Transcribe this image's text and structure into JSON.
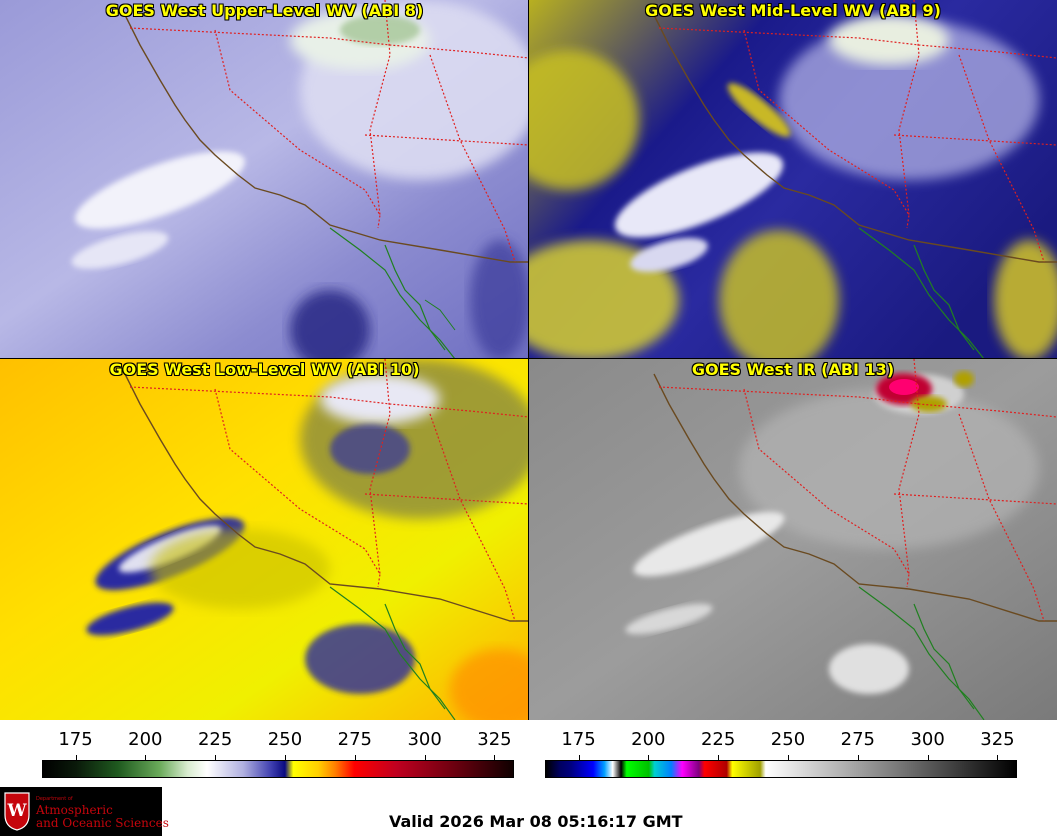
{
  "panels": [
    {
      "title": "GOES West Upper-Level WV (ABI 8)",
      "scheme": "upper"
    },
    {
      "title": "GOES West Mid-Level WV (ABI 9)",
      "scheme": "mid"
    },
    {
      "title": "GOES West Low-Level WV (ABI 10)",
      "scheme": "low"
    },
    {
      "title": "GOES West IR (ABI 13)",
      "scheme": "ir"
    }
  ],
  "colorbars": {
    "ticks": [
      "175",
      "200",
      "225",
      "250",
      "275",
      "300",
      "325"
    ],
    "tick_values": [
      175,
      200,
      225,
      250,
      275,
      300,
      325
    ],
    "range": [
      163,
      332
    ],
    "wv_stops": [
      [
        163,
        "#000000"
      ],
      [
        175,
        "#0a1a0a"
      ],
      [
        190,
        "#1f5a1f"
      ],
      [
        205,
        "#6aaa5a"
      ],
      [
        215,
        "#d8ecd0"
      ],
      [
        222,
        "#ffffff"
      ],
      [
        235,
        "#b0b0e0"
      ],
      [
        245,
        "#4040b0"
      ],
      [
        250,
        "#0a0a80"
      ],
      [
        253,
        "#ffff00"
      ],
      [
        262,
        "#ffd000"
      ],
      [
        268,
        "#ff8000"
      ],
      [
        275,
        "#ff0000"
      ],
      [
        290,
        "#c00020"
      ],
      [
        310,
        "#700010"
      ],
      [
        332,
        "#100000"
      ]
    ],
    "ir_stops": [
      [
        163,
        "#000000"
      ],
      [
        168,
        "#000060"
      ],
      [
        172,
        "#000080"
      ],
      [
        180,
        "#0000ff"
      ],
      [
        184,
        "#00a0ff"
      ],
      [
        187,
        "#ffffff"
      ],
      [
        190,
        "#000000"
      ],
      [
        192,
        "#00ff00"
      ],
      [
        200,
        "#00c000"
      ],
      [
        202,
        "#00d0d0"
      ],
      [
        208,
        "#0080ff"
      ],
      [
        212,
        "#ff00ff"
      ],
      [
        218,
        "#800080"
      ],
      [
        220,
        "#ff0000"
      ],
      [
        228,
        "#b00000"
      ],
      [
        230,
        "#ffff00"
      ],
      [
        240,
        "#a0a000"
      ],
      [
        242,
        "#ffffff"
      ],
      [
        332,
        "#000000"
      ]
    ]
  },
  "logo": {
    "dept": "Department of",
    "line1": "Atmospheric",
    "line2": "and Oceanic Sciences",
    "colors": {
      "bg": "#000000",
      "text": "#c5050c"
    }
  },
  "valid_text": "Valid 2026 Mar 08 05:16:17 GMT"
}
